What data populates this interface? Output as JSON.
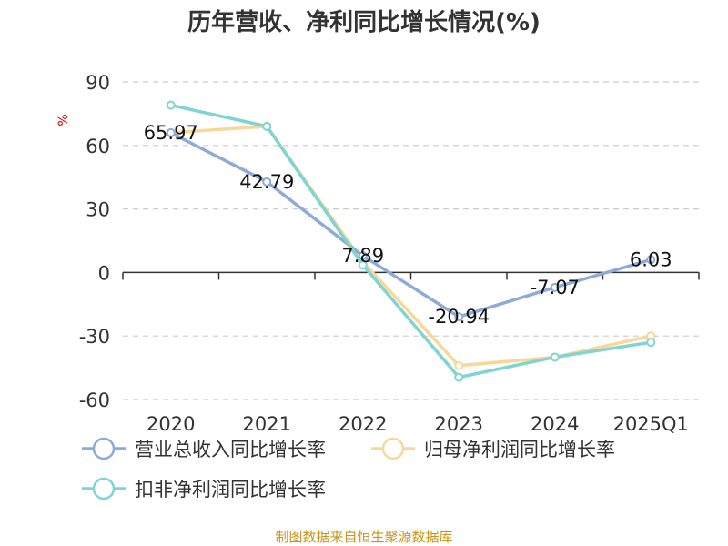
{
  "chart_data": {
    "type": "line",
    "title": "历年营收、净利同比增长情况(%)",
    "ylabel": "%",
    "xlabel": "",
    "categories": [
      "2020",
      "2021",
      "2022",
      "2023",
      "2024",
      "2025Q1"
    ],
    "ylim": [
      -60,
      90
    ],
    "yticks": [
      90,
      60,
      30,
      0,
      -30,
      -60
    ],
    "grid": true,
    "legend_position": "bottom",
    "series": [
      {
        "name": "营业总收入同比增长率",
        "color": "#8eaad6",
        "values": [
          65.97,
          42.79,
          7.89,
          -20.94,
          -7.07,
          6.03
        ],
        "labels": [
          "65.97",
          "42.79",
          "7.89",
          "-20.94",
          "-7.07",
          "6.03"
        ]
      },
      {
        "name": "归母净利润同比增长率",
        "color": "#f7d898",
        "values": [
          66,
          69,
          5,
          -44,
          -40,
          -30
        ],
        "labels": []
      },
      {
        "name": "扣非净利润同比增长率",
        "color": "#80d4d4",
        "values": [
          79,
          69,
          3.5,
          -49.5,
          -40,
          -33
        ],
        "labels": []
      }
    ],
    "source": "制图数据来自恒生聚源数据库"
  }
}
